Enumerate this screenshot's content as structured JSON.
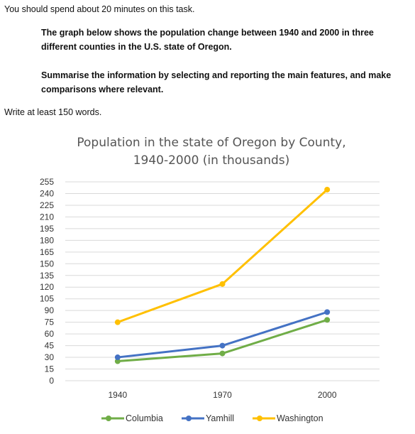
{
  "instructions": {
    "time_note": "You should spend about 20 minutes on this task.",
    "task_description": "The graph below shows the population change between 1940 and 2000 in three different counties in the U.S. state of Oregon.",
    "task_prompt": "Summarise the information by selecting and reporting the main features, and make comparisons where relevant.",
    "word_requirement": "Write at least 150 words."
  },
  "chart_data": {
    "type": "line",
    "title_line1": "Population in the state of Oregon by County,",
    "title_line2": "1940-2000 (in thousands)",
    "categories": [
      "1940",
      "1970",
      "2000"
    ],
    "ylim": [
      0,
      255
    ],
    "yticks": [
      0,
      15,
      30,
      45,
      60,
      75,
      90,
      105,
      120,
      135,
      150,
      165,
      180,
      195,
      210,
      225,
      240,
      255
    ],
    "grid": true,
    "legend_position": "bottom",
    "series": [
      {
        "name": "Columbia",
        "color": "#70ad47",
        "values": [
          25,
          35,
          78
        ]
      },
      {
        "name": "Yamhill",
        "color": "#4472c4",
        "values": [
          30,
          45,
          88
        ]
      },
      {
        "name": "Washington",
        "color": "#ffc000",
        "values": [
          75,
          124,
          245
        ]
      }
    ]
  }
}
